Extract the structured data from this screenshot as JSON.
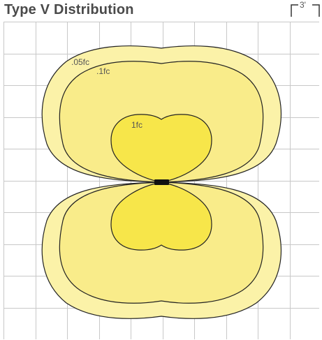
{
  "title": "Type V Distribution",
  "scale_label": "3'",
  "contours": [
    {
      "label": ".05fc",
      "fill": "#fbf2a8"
    },
    {
      "label": ".1fc",
      "fill": "#f9ec8a"
    },
    {
      "label": "1fc",
      "fill": "#f7e64a"
    }
  ],
  "colors": {
    "grid": "#c8c8c8",
    "stroke": "#222222",
    "fixture": "#111111",
    "text": "#4a4a4a"
  }
}
